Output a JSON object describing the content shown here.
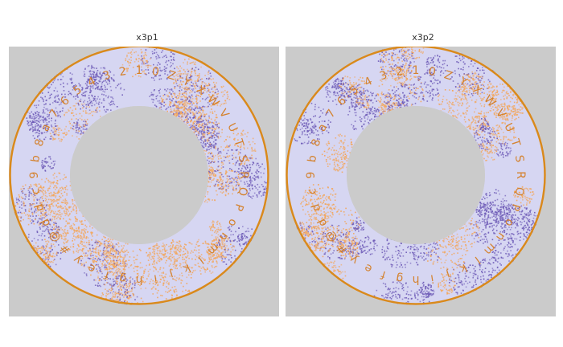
{
  "panels": [
    {
      "title": "x3p1",
      "text_glyphs": [
        "#",
        "@",
        "d",
        "d",
        "c",
        "9",
        "b",
        "8",
        "a",
        "7",
        "6",
        "5",
        "4",
        "3",
        "2",
        "1",
        "0",
        "Z",
        "Y",
        "X",
        "W",
        "V",
        "U",
        "T",
        "S",
        "R",
        "Q",
        "P",
        "o",
        "n",
        "m",
        "l",
        "k",
        "j",
        "i",
        "h",
        "g",
        "f",
        "e",
        "y"
      ]
    },
    {
      "title": "x3p2",
      "text_glyphs": [
        "#",
        "@",
        "d",
        "d",
        "c",
        "9",
        "b",
        "8",
        "a",
        "7",
        "6",
        "5",
        "4",
        "3",
        "2",
        "1",
        "0",
        "Z",
        "Y",
        "X",
        "W",
        "V",
        "U",
        "T",
        "S",
        "R",
        "Q",
        "P",
        "o",
        "n",
        "m",
        "l",
        "k",
        "j",
        "i",
        "h",
        "g",
        "f",
        "e",
        "y"
      ]
    }
  ],
  "colors": {
    "background": "#cbcbcb",
    "ring_base": "#d6d6f2",
    "ring_outline": "#d98a1c",
    "purple": "#6e5bb7",
    "orange": "#f3a65a",
    "glyph": "#d47a1a"
  }
}
